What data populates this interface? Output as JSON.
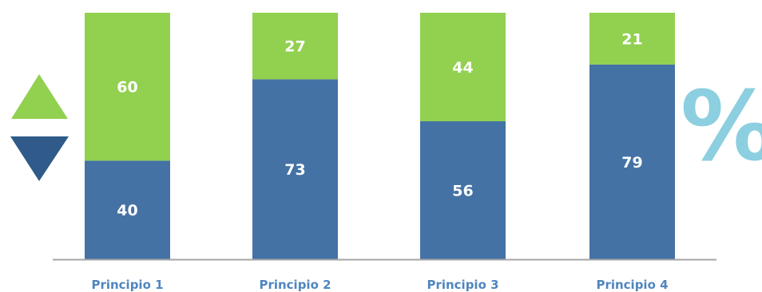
{
  "chart_data": {
    "type": "bar",
    "stacked": true,
    "percent": true,
    "categories": [
      "Principio 1",
      "Principio 2",
      "Principio 3",
      "Principio 4"
    ],
    "series": [
      {
        "values": [
          40,
          73,
          56,
          79
        ],
        "color": "#4472a5"
      },
      {
        "values": [
          60,
          27,
          44,
          21
        ],
        "color": "#92d050"
      }
    ],
    "ylim": [
      0,
      100
    ],
    "grid": false,
    "legend": "left (up/down triangle markers)",
    "legend_icons": [
      {
        "icon": "triangle-up-icon",
        "color": "#92d050"
      },
      {
        "icon": "triangle-down-icon",
        "color": "#2f5a89"
      }
    ],
    "category_label_color": "#4f86bf",
    "axis_line_color": "#a6a6a6",
    "unit_symbol": {
      "text": "%",
      "color": "#8ccfe0"
    }
  }
}
